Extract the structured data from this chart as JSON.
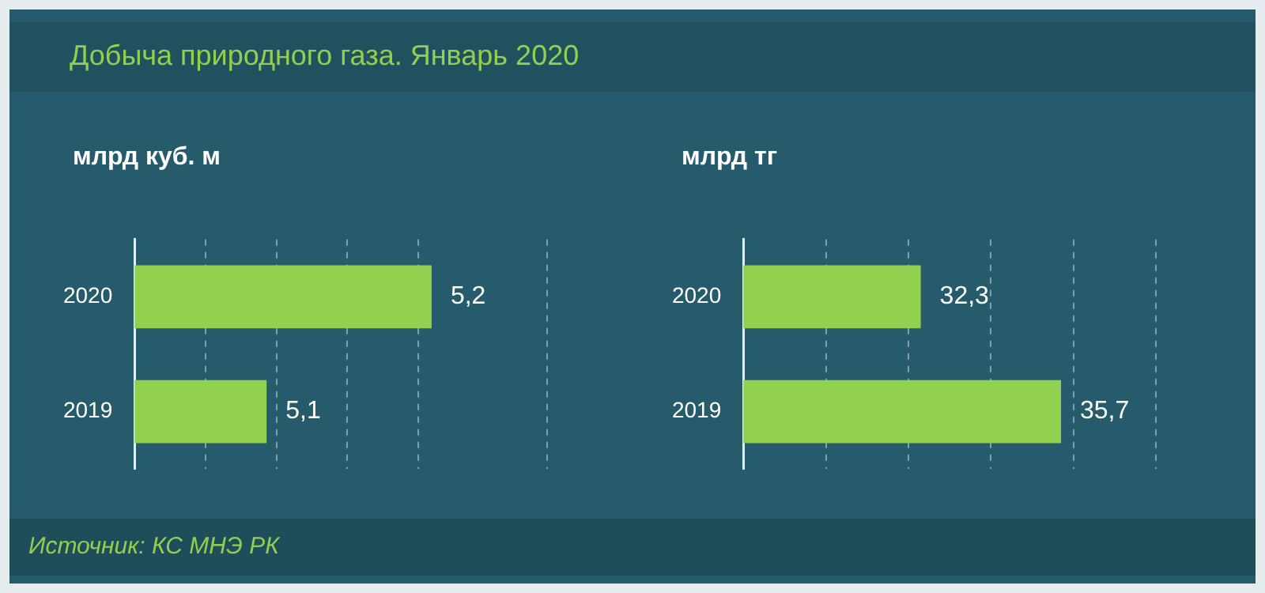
{
  "chart_data": [
    {
      "type": "bar",
      "orientation": "horizontal",
      "title": "Добыча природного газа. Январь 2020",
      "subtitle": "млрд куб. м",
      "annotations": [
        "Источник: КС МНЭ РК"
      ],
      "categories": [
        "2020",
        "2019"
      ],
      "values": [
        5.2,
        5.1
      ],
      "value_labels": [
        "5,2",
        "5,1"
      ],
      "color": "#92d050",
      "xlim": [
        5.02,
        5.27
      ],
      "xticks": [
        {
          "value": 5.063,
          "label": null
        },
        {
          "value": 5.106,
          "label": null
        },
        {
          "value": 5.149,
          "label": null
        },
        {
          "value": 5.192,
          "label": null
        },
        {
          "value": 5.27,
          "label": null
        }
      ],
      "grid": "x",
      "tick_labels": "y"
    },
    {
      "type": "bar",
      "orientation": "horizontal",
      "subtitle": "млрд тг",
      "categories": [
        "2020",
        "2019"
      ],
      "values": [
        32.3,
        35.7
      ],
      "value_labels": [
        "32,3",
        "35,7"
      ],
      "color": "#92d050",
      "xlim": [
        28,
        38
      ],
      "xticks": [
        {
          "value": 30,
          "label": null
        },
        {
          "value": 32,
          "label": null
        },
        {
          "value": 34,
          "label": null
        },
        {
          "value": 36,
          "label": null
        },
        {
          "value": 38,
          "label": null
        }
      ],
      "grid": "x",
      "tick_labels": "y"
    }
  ]
}
